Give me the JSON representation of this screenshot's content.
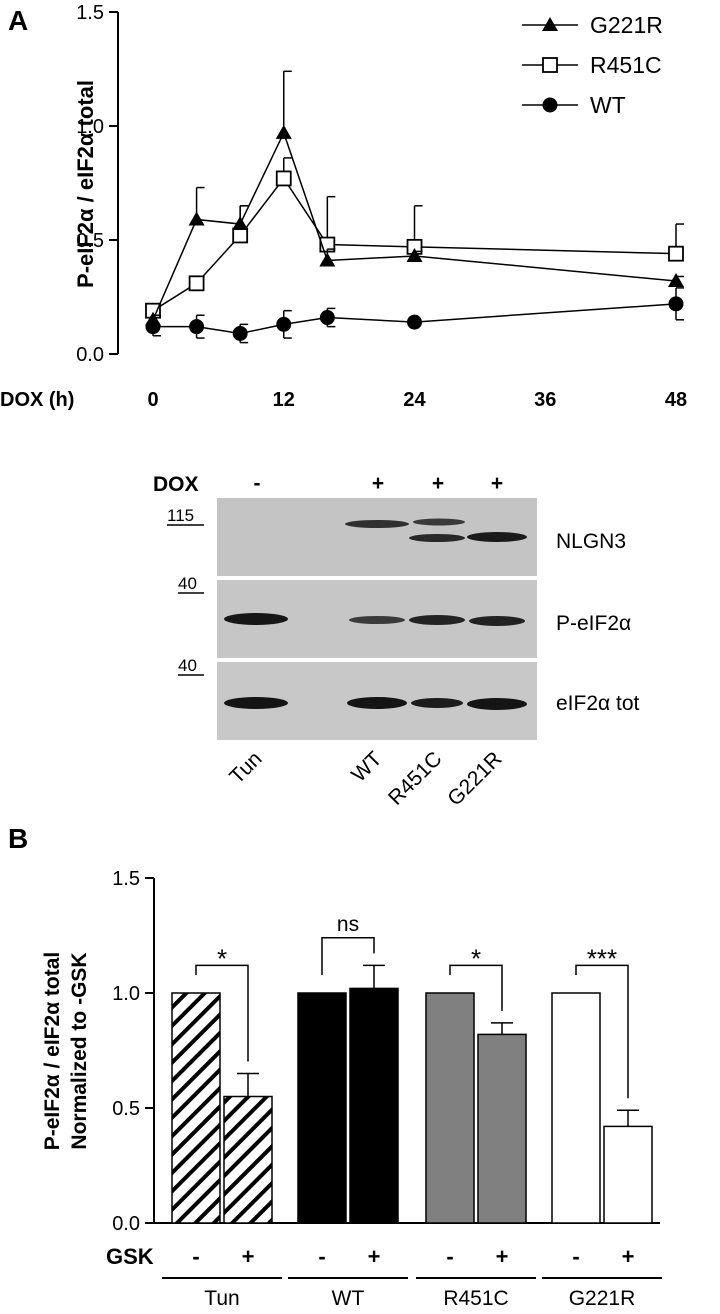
{
  "panels": {
    "a": "A",
    "b": "B"
  },
  "colors": {
    "axis": "#000000",
    "blot_bg": "#c8c8c8",
    "band": "#202020",
    "bar_black": "#000000",
    "bar_gray": "#808080",
    "bar_white": "#ffffff"
  },
  "chart_data": [
    {
      "type": "line",
      "ylabel": "P-eIF2α / eIF2α total",
      "xlabel": "DOX (h)",
      "ylim": [
        0,
        1.5
      ],
      "yticks": [
        "0.0",
        "0.5",
        "1.0",
        "1.5"
      ],
      "xticks": [
        "0",
        "12",
        "24",
        "36",
        "48"
      ],
      "xlim": [
        0,
        48
      ],
      "legend": "top-right",
      "series": [
        {
          "name": "G221R",
          "marker": "triangle-filled",
          "x": [
            0,
            4,
            8,
            12,
            16,
            24,
            48
          ],
          "y": [
            0.15,
            0.59,
            0.57,
            0.97,
            0.41,
            0.43,
            0.32
          ],
          "err": [
            0.02,
            0.14,
            0.08,
            0.27,
            0.05,
            0.02,
            0.02
          ]
        },
        {
          "name": "R451C",
          "marker": "square-open",
          "x": [
            0,
            4,
            8,
            12,
            16,
            24,
            48
          ],
          "y": [
            0.19,
            0.31,
            0.52,
            0.77,
            0.48,
            0.47,
            0.44
          ],
          "err": [
            0.03,
            0.03,
            0.13,
            0.09,
            0.21,
            0.18,
            0.13
          ]
        },
        {
          "name": "WT",
          "marker": "circle-filled",
          "x": [
            0,
            4,
            8,
            12,
            16,
            24,
            48
          ],
          "y": [
            0.12,
            0.12,
            0.09,
            0.13,
            0.16,
            0.14,
            0.22
          ],
          "err": [
            0.04,
            0.05,
            0.04,
            0.06,
            0.04,
            0.0,
            0.07
          ]
        }
      ]
    },
    {
      "type": "bar",
      "ylabel_lines": [
        "P-eIF2α / eIF2α total",
        "Normalized to -GSK"
      ],
      "ylim": [
        0,
        1.5
      ],
      "yticks": [
        "0.0",
        "0.5",
        "1.0",
        "1.5"
      ],
      "gsk_label": "GSK",
      "groups": [
        {
          "label": "Tun",
          "fill": "hatch",
          "values": [
            1.0,
            0.55
          ],
          "err": [
            0,
            0.1
          ],
          "signif": "*"
        },
        {
          "label": "WT",
          "fill": "black",
          "values": [
            1.0,
            1.02
          ],
          "err": [
            0,
            0.1
          ],
          "signif": "ns"
        },
        {
          "label": "R451C",
          "fill": "gray",
          "values": [
            1.0,
            0.82
          ],
          "err": [
            0,
            0.05
          ],
          "signif": "*"
        },
        {
          "label": "G221R",
          "fill": "white",
          "values": [
            1.0,
            0.42
          ],
          "err": [
            0,
            0.07
          ],
          "signif": "***"
        }
      ],
      "gsk_signs": [
        "-",
        "+"
      ]
    }
  ],
  "blot": {
    "dox_label": "DOX",
    "dox_signs": [
      "-",
      "+",
      "+",
      "+"
    ],
    "mw_markers": [
      "115",
      "40",
      "40"
    ],
    "rows": [
      "NLGN3",
      "P-eIF2α",
      "eIF2α tot"
    ],
    "lanes": [
      "Tun",
      "WT",
      "R451C",
      "G221R"
    ]
  }
}
